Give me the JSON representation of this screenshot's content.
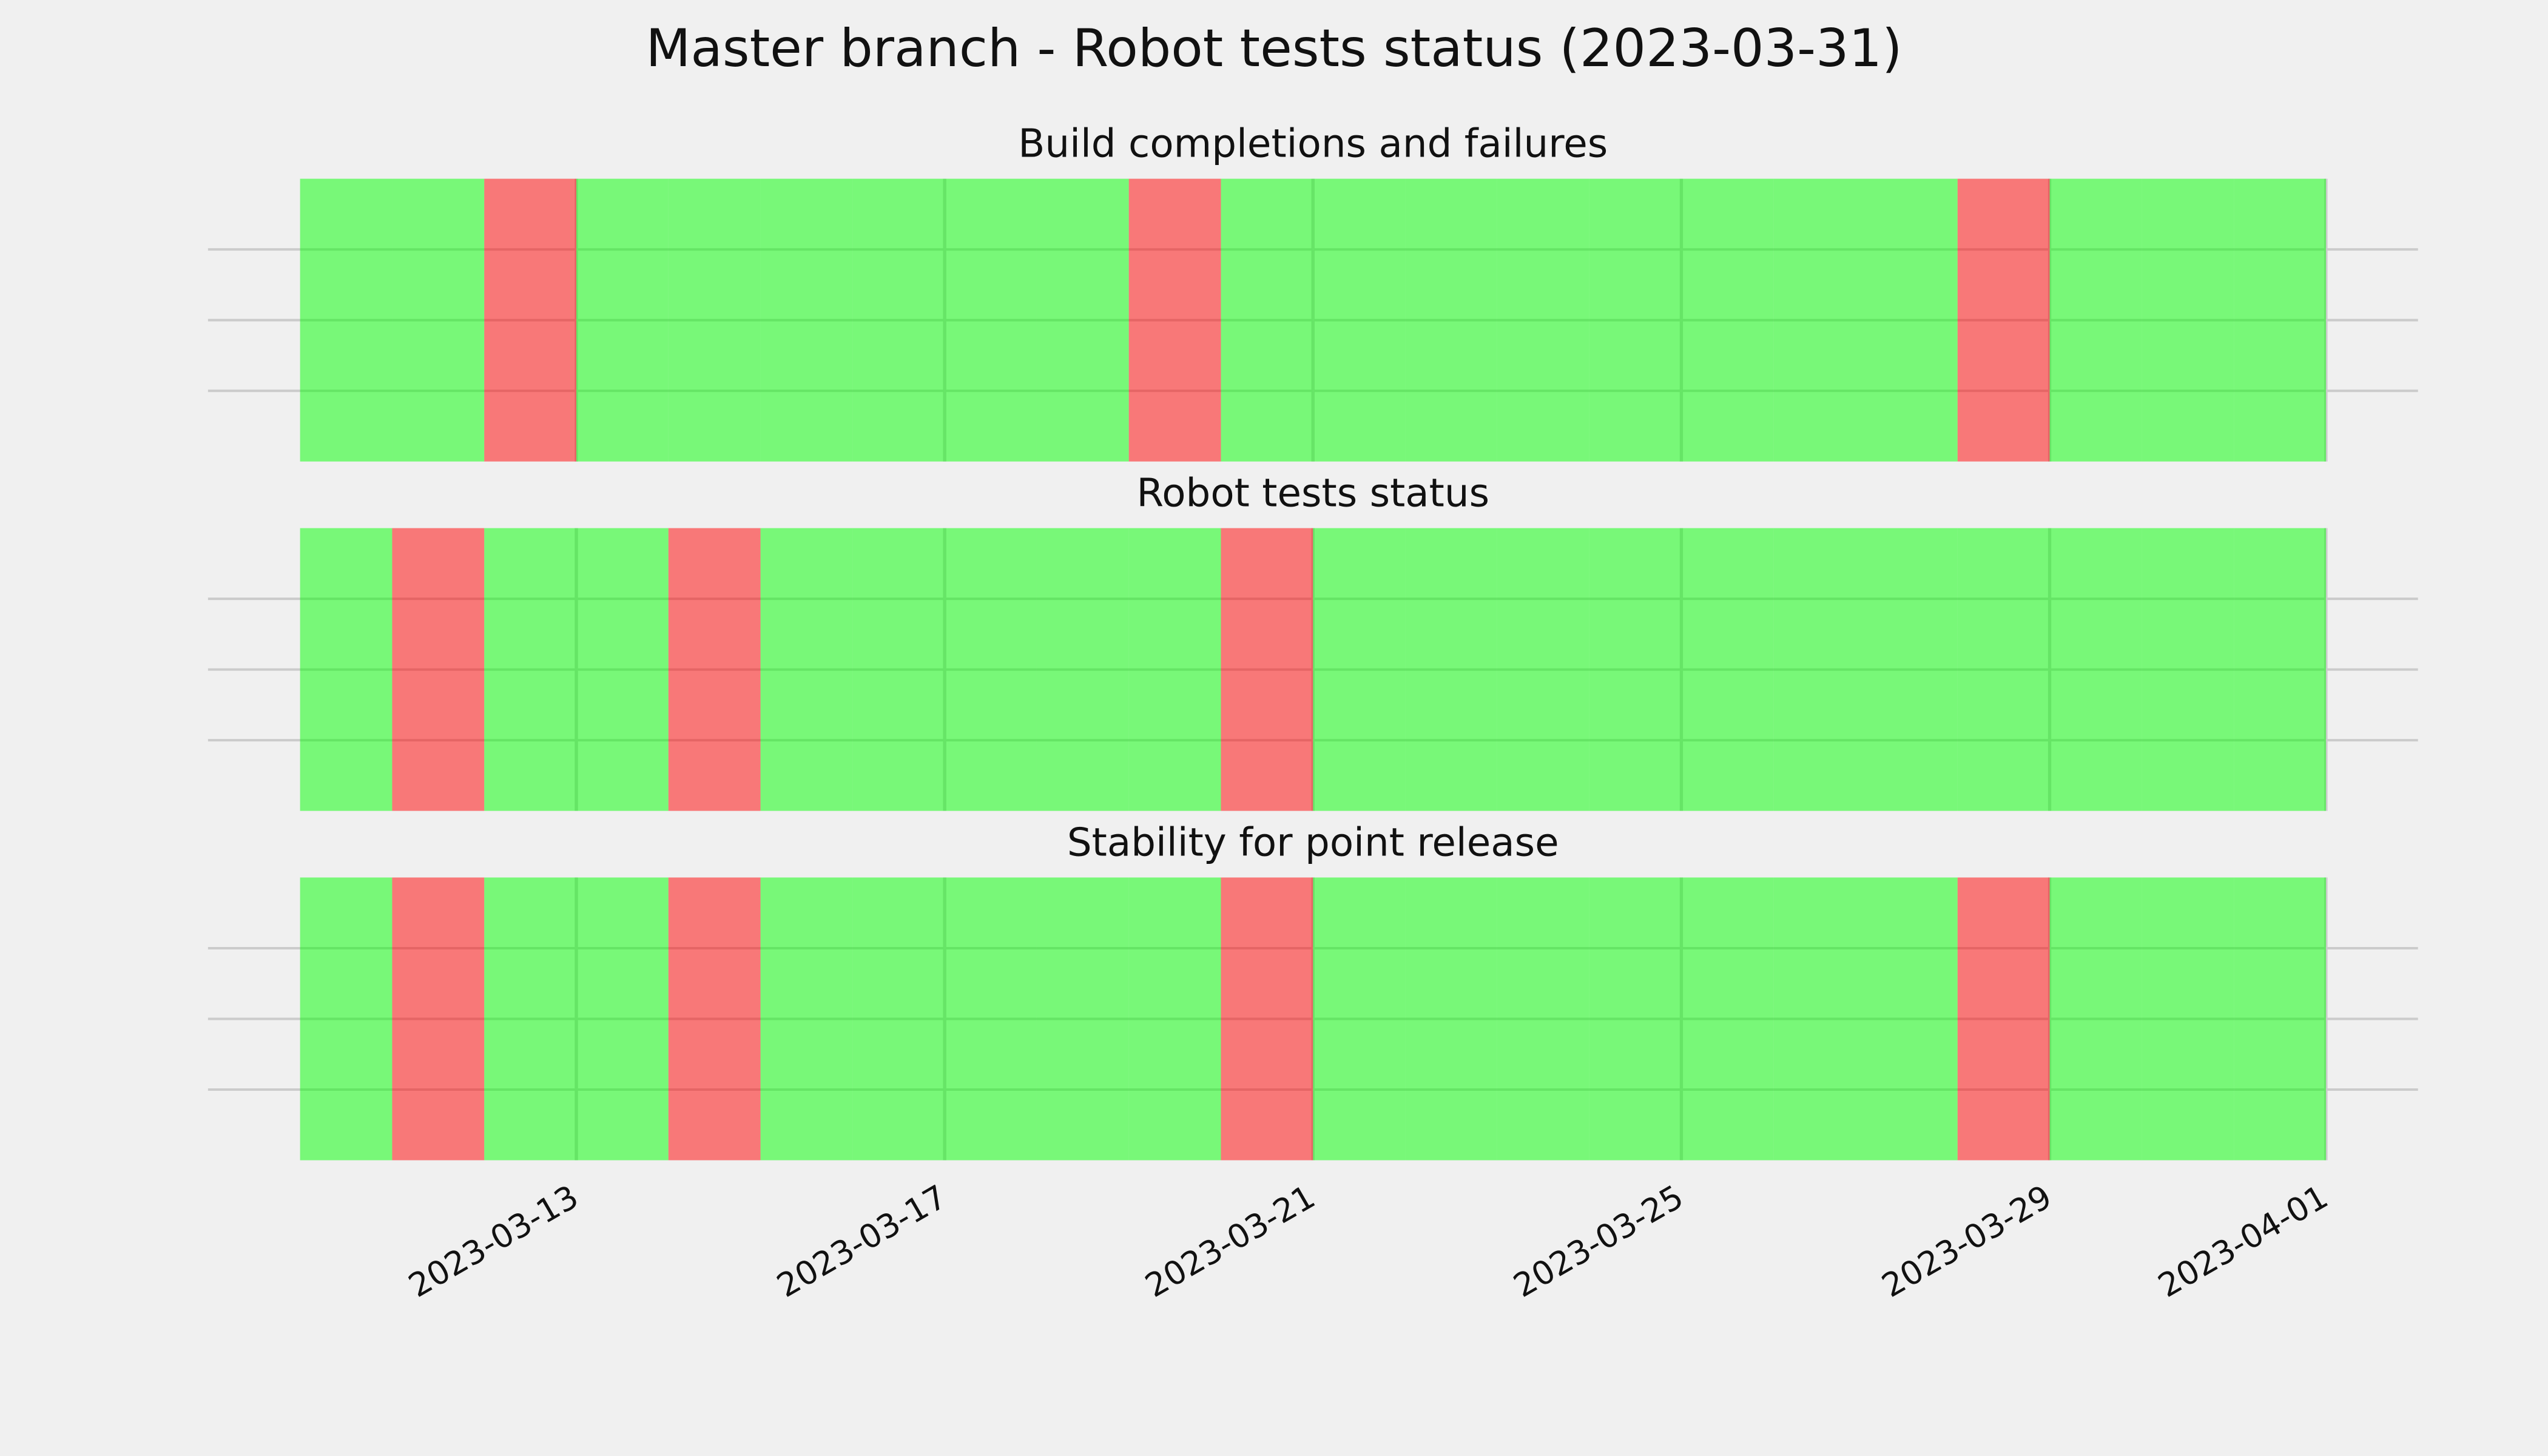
{
  "title": "Master branch - Robot tests status (2023-03-31)",
  "chart_data": [
    {
      "type": "status-bar",
      "title": "Build completions and failures",
      "x": [
        "2023-03-10",
        "2023-03-11",
        "2023-03-12",
        "2023-03-13",
        "2023-03-14",
        "2023-03-15",
        "2023-03-16",
        "2023-03-17",
        "2023-03-18",
        "2023-03-19",
        "2023-03-20",
        "2023-03-21",
        "2023-03-22",
        "2023-03-23",
        "2023-03-24",
        "2023-03-25",
        "2023-03-26",
        "2023-03-27",
        "2023-03-28",
        "2023-03-29",
        "2023-03-30",
        "2023-03-31"
      ],
      "values": [
        1,
        1,
        0,
        1,
        1,
        1,
        1,
        1,
        1,
        0,
        1,
        1,
        1,
        1,
        1,
        1,
        1,
        1,
        0,
        1,
        1,
        1
      ],
      "status_colors": [
        "#ff0000",
        "#00ff00"
      ],
      "alpha": 0.5,
      "xlim": [
        "2023-03-09",
        "2023-04-02"
      ],
      "xticks": [
        "2023-03-13",
        "2023-03-17",
        "2023-03-21",
        "2023-03-25",
        "2023-03-29",
        "2023-04-01"
      ],
      "ylim": [
        0,
        1
      ],
      "yticks": [
        0.25,
        0.5,
        0.75
      ],
      "grid": true
    },
    {
      "type": "status-bar",
      "title": "Robot tests status",
      "x": [
        "2023-03-10",
        "2023-03-11",
        "2023-03-12",
        "2023-03-13",
        "2023-03-14",
        "2023-03-15",
        "2023-03-16",
        "2023-03-17",
        "2023-03-18",
        "2023-03-19",
        "2023-03-20",
        "2023-03-21",
        "2023-03-22",
        "2023-03-23",
        "2023-03-24",
        "2023-03-25",
        "2023-03-26",
        "2023-03-27",
        "2023-03-28",
        "2023-03-29",
        "2023-03-30",
        "2023-03-31"
      ],
      "values": [
        1,
        0,
        1,
        1,
        0,
        1,
        1,
        1,
        1,
        1,
        0,
        1,
        1,
        1,
        1,
        1,
        1,
        1,
        1,
        1,
        1,
        1
      ],
      "status_colors": [
        "#ff0000",
        "#00ff00"
      ],
      "alpha": 0.5,
      "xlim": [
        "2023-03-09",
        "2023-04-02"
      ],
      "xticks": [
        "2023-03-13",
        "2023-03-17",
        "2023-03-21",
        "2023-03-25",
        "2023-03-29",
        "2023-04-01"
      ],
      "ylim": [
        0,
        1
      ],
      "yticks": [
        0.25,
        0.5,
        0.75
      ],
      "grid": true
    },
    {
      "type": "status-bar",
      "title": "Stability for point release",
      "x": [
        "2023-03-10",
        "2023-03-11",
        "2023-03-12",
        "2023-03-13",
        "2023-03-14",
        "2023-03-15",
        "2023-03-16",
        "2023-03-17",
        "2023-03-18",
        "2023-03-19",
        "2023-03-20",
        "2023-03-21",
        "2023-03-22",
        "2023-03-23",
        "2023-03-24",
        "2023-03-25",
        "2023-03-26",
        "2023-03-27",
        "2023-03-28",
        "2023-03-29",
        "2023-03-30",
        "2023-03-31"
      ],
      "values": [
        1,
        0,
        1,
        1,
        0,
        1,
        1,
        1,
        1,
        1,
        0,
        1,
        1,
        1,
        1,
        1,
        1,
        1,
        0,
        1,
        1,
        1
      ],
      "status_colors": [
        "#ff0000",
        "#00ff00"
      ],
      "alpha": 0.5,
      "xlim": [
        "2023-03-09",
        "2023-04-02"
      ],
      "xticks": [
        "2023-03-13",
        "2023-03-17",
        "2023-03-21",
        "2023-03-25",
        "2023-03-29",
        "2023-04-01"
      ],
      "ylim": [
        0,
        1
      ],
      "yticks": [
        0.25,
        0.5,
        0.75
      ],
      "grid": true,
      "show_xtick_labels": true
    }
  ]
}
